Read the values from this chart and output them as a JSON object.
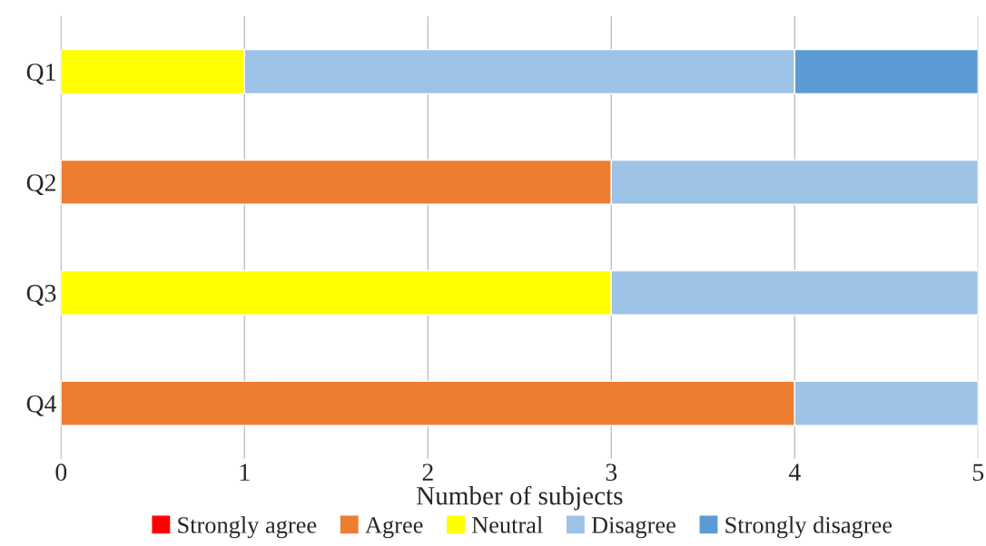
{
  "chart_data": {
    "type": "bar",
    "orientation": "horizontal",
    "stacked": true,
    "categories": [
      "Q1",
      "Q2",
      "Q3",
      "Q4"
    ],
    "xlabel": "Number of subjects",
    "xlim": [
      0,
      5
    ],
    "xticks": [
      0,
      1,
      2,
      3,
      4,
      5
    ],
    "grid": "x",
    "legend": "bottom",
    "series": [
      {
        "name": "Strongly agree",
        "color": "#ff0000",
        "values": [
          null,
          null,
          null,
          null
        ]
      },
      {
        "name": "Agree",
        "color": "#ed7d31",
        "values": [
          0,
          3,
          0,
          4
        ]
      },
      {
        "name": "Neutral",
        "color": "#ffff00",
        "values": [
          1,
          0,
          3,
          0
        ]
      },
      {
        "name": "Disagree",
        "color": "#9dc3e6",
        "values": [
          3,
          2,
          2,
          1
        ]
      },
      {
        "name": "Strongly disagree",
        "color": "#5b9bd5",
        "values": [
          1,
          0,
          0,
          0
        ]
      }
    ]
  }
}
